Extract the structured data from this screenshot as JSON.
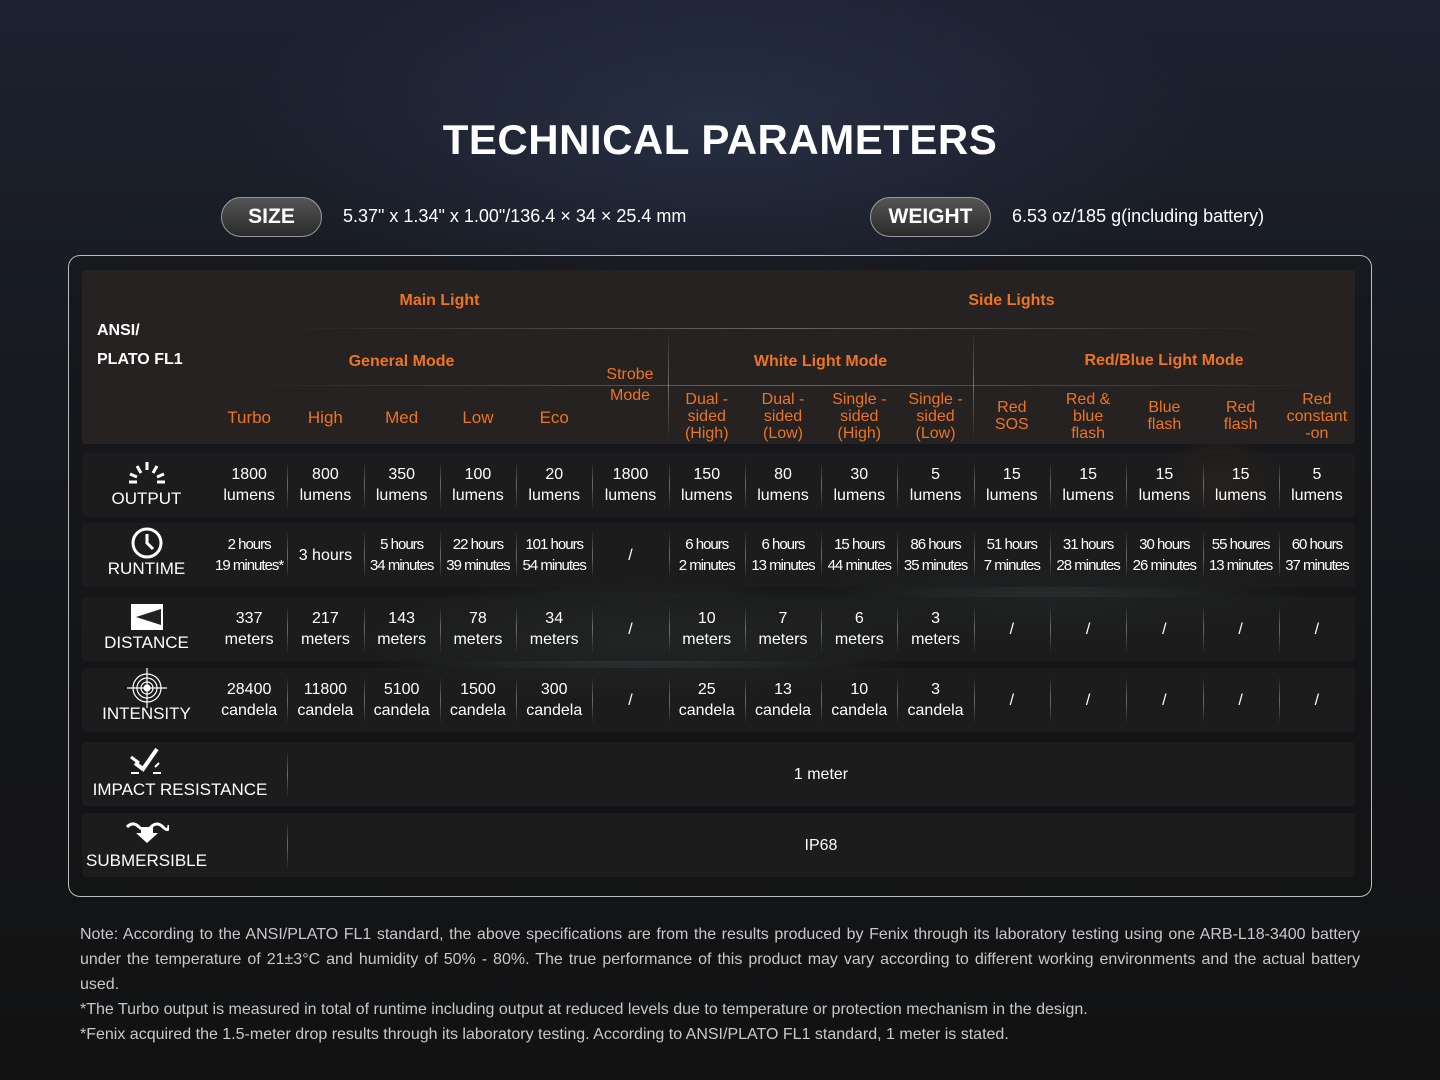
{
  "title": "TECHNICAL PARAMETERS",
  "size": {
    "label": "SIZE",
    "value": "5.37\" x 1.34\" x 1.00\"/136.4 × 34 × 25.4 mm"
  },
  "weight": {
    "label": "WEIGHT",
    "value": "6.53 oz/185 g(including battery)"
  },
  "colors": {
    "accent": "#ef7421"
  },
  "header": {
    "corner": [
      "ANSI/",
      "PLATO FL1"
    ],
    "main_light": "Main Light",
    "side_lights": "Side Lights",
    "general_mode": "General Mode",
    "strobe_mode": "Strobe Mode",
    "white_mode": "White Light Mode",
    "redblue_mode": "Red/Blue Light Mode",
    "columns": [
      "Turbo",
      "High",
      "Med",
      "Low",
      "Eco",
      "",
      "Dual -sided (High)",
      "Dual -sided (Low)",
      "Single -sided (High)",
      "Single -sided (Low)",
      "Red SOS",
      "Red & blue flash",
      "Blue flash",
      "Red flash",
      "Red constant -on"
    ]
  },
  "rows": [
    {
      "label": "OUTPUT",
      "icon": "sunburst-icon",
      "cells": [
        "1800\nlumens",
        "800\nlumens",
        "350\nlumens",
        "100\nlumens",
        "20\nlumens",
        "1800\nlumens",
        "150\nlumens",
        "80\nlumens",
        "30\nlumens",
        "5\nlumens",
        "15\nlumens",
        "15\nlumens",
        "15\nlumens",
        "15\nlumens",
        "5\nlumens"
      ]
    },
    {
      "label": "RUNTIME",
      "icon": "clock-icon",
      "cells": [
        "2 hours\n19 minutes*",
        "3 hours",
        "5 hours\n34 minutes",
        "22 hours\n39 minutes",
        "101 hours\n54 minutes",
        "/",
        "6 hours\n2 minutes",
        "6 hours\n13 minutes",
        "15 hours\n44 minutes",
        "86 hours\n35 minutes",
        "51 hours\n7 minutes",
        "31 hours\n28 minutes",
        "30 hours\n26 minutes",
        "55 houres\n13 minutes",
        "60 hours\n37 minutes"
      ]
    },
    {
      "label": "DISTANCE",
      "icon": "distance-icon",
      "cells": [
        "337\nmeters",
        "217\nmeters",
        "143\nmeters",
        "78\nmeters",
        "34\nmeters",
        "/",
        "10\nmeters",
        "7\nmeters",
        "6\nmeters",
        "3\nmeters",
        "/",
        "/",
        "/",
        "/",
        "/"
      ]
    },
    {
      "label": "INTENSITY",
      "icon": "target-icon",
      "cells": [
        "28400\ncandela",
        "11800\ncandela",
        "5100\ncandela",
        "1500\ncandela",
        "300\ncandela",
        "/",
        "25\ncandela",
        "13\ncandela",
        "10\ncandela",
        "3\ncandela",
        "/",
        "/",
        "/",
        "/",
        "/"
      ]
    }
  ],
  "impact": {
    "label": "IMPACT RESISTANCE",
    "value": "1 meter"
  },
  "submersible": {
    "label": "SUBMERSIBLE",
    "value": "IP68"
  },
  "notes": [
    "Note: According to the ANSI/PLATO FL1 standard, the above specifications are from the results produced by Fenix through its laboratory testing using one ARB-L18-3400 battery under the temperature of 21±3°C and humidity of 50% - 80%. The true performance of this product may vary according to different working environments and the actual battery used.",
    "*The Turbo output is measured in total of runtime including output at reduced levels due to temperature or protection mechanism in the design.",
    "*Fenix acquired the 1.5-meter drop results through its laboratory testing. According to ANSI/PLATO FL1 standard, 1 meter is stated."
  ]
}
